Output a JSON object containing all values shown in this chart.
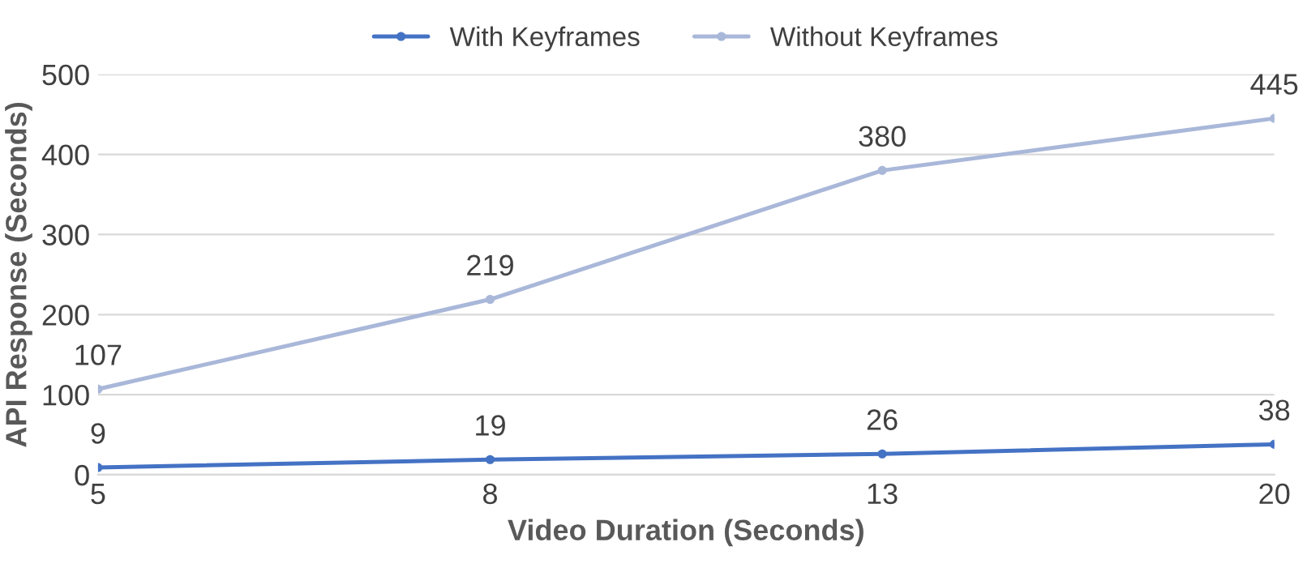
{
  "chart_data": {
    "type": "line",
    "xlabel": "Video Duration (Seconds)",
    "ylabel": "API Response (Seconds)",
    "categories": [
      "5",
      "8",
      "13",
      "20"
    ],
    "series": [
      {
        "name": "With Keyframes",
        "color": "#4472c4",
        "values": [
          9,
          19,
          26,
          38
        ]
      },
      {
        "name": "Without Keyframes",
        "color": "#a9b7d9",
        "values": [
          107,
          219,
          380,
          445
        ]
      }
    ],
    "ylim": [
      0,
      500
    ],
    "yticks": [
      0,
      100,
      200,
      300,
      400,
      500
    ],
    "grid": "y",
    "legend": "top",
    "marker": "circle",
    "line_style": "solid",
    "data_labels": true
  }
}
